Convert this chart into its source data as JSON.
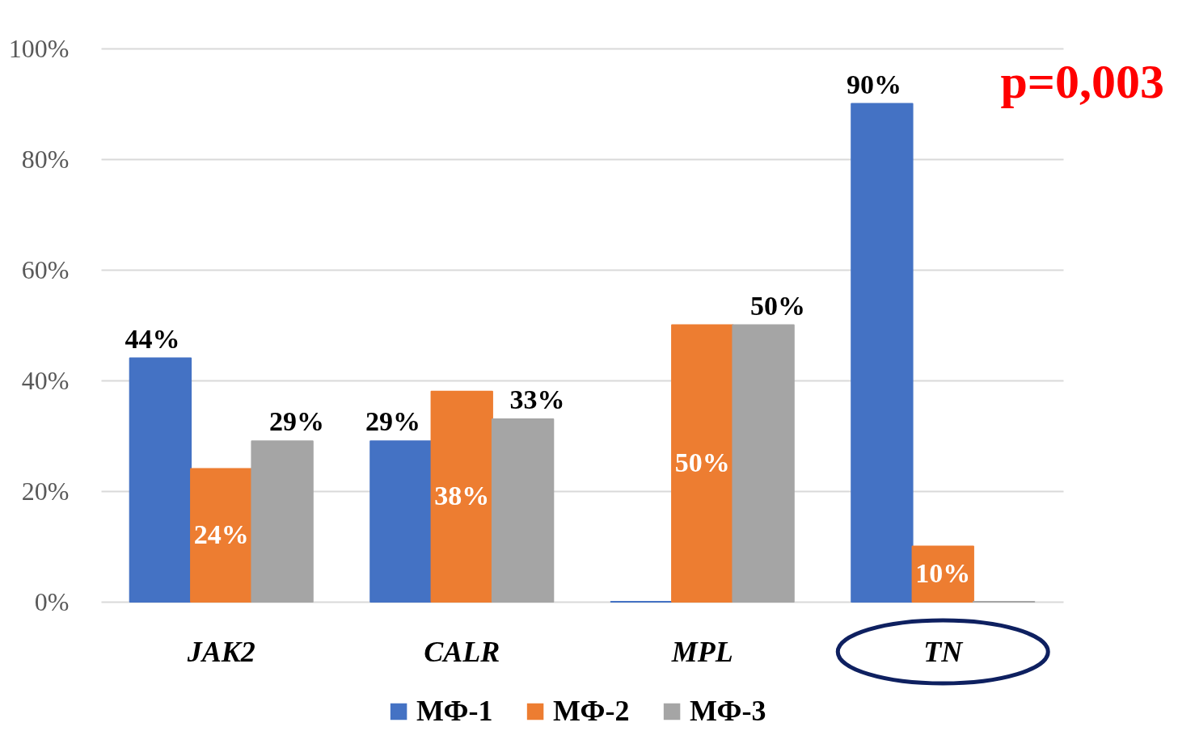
{
  "chart_data": {
    "type": "bar",
    "categories": [
      "JAK2",
      "CALR",
      "MPL",
      "TN"
    ],
    "series": [
      {
        "name": "МФ-1",
        "color": "#4472c4",
        "values": [
          44,
          29,
          0,
          90
        ],
        "value_labels": [
          "44%",
          "29%",
          null,
          "90%"
        ]
      },
      {
        "name": "МФ-2",
        "color": "#ed7d31",
        "values": [
          24,
          38,
          50,
          10
        ],
        "value_labels": [
          "24%",
          "38%",
          "50%",
          "10%"
        ]
      },
      {
        "name": "МФ-3",
        "color": "#a5a5a5",
        "values": [
          29,
          33,
          50,
          0
        ],
        "value_labels": [
          "29%",
          "33%",
          "50%",
          null
        ]
      }
    ],
    "ylim": [
      0,
      100
    ],
    "yticks": [
      {
        "value": 0,
        "label": "0%"
      },
      {
        "value": 20,
        "label": "20%"
      },
      {
        "value": 40,
        "label": "40%"
      },
      {
        "value": 60,
        "label": "60%"
      },
      {
        "value": 80,
        "label": "80%"
      },
      {
        "value": 100,
        "label": "100%"
      }
    ],
    "grid": "y",
    "legend": "bottom",
    "annotations": [
      "p=0,003"
    ]
  }
}
